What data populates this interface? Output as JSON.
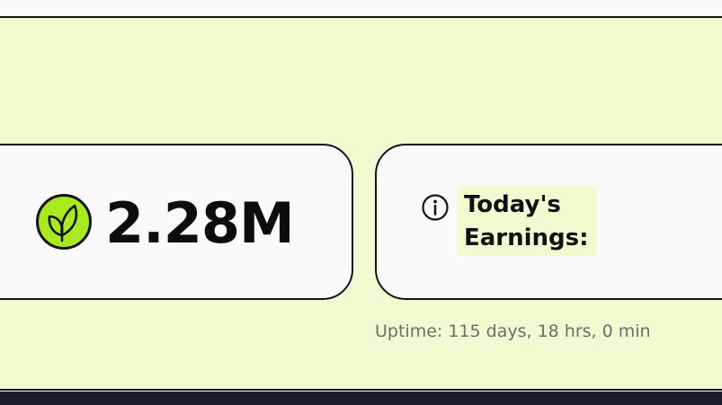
{
  "balance": {
    "value": "2.28M",
    "icon": "leaf-icon",
    "icon_color": "#a8ea1f"
  },
  "earnings": {
    "icon": "info-icon",
    "label_line1": "Today's",
    "label_line2": "Earnings:"
  },
  "uptime": {
    "text": "Uptime: 115 days, 18 hrs, 0 min"
  },
  "colors": {
    "panel_background": "#f0fbd2",
    "card_background": "#fafafa",
    "border": "#141414",
    "bottom_bar": "#1b1d2a",
    "muted_text": "#6e6e6e"
  }
}
